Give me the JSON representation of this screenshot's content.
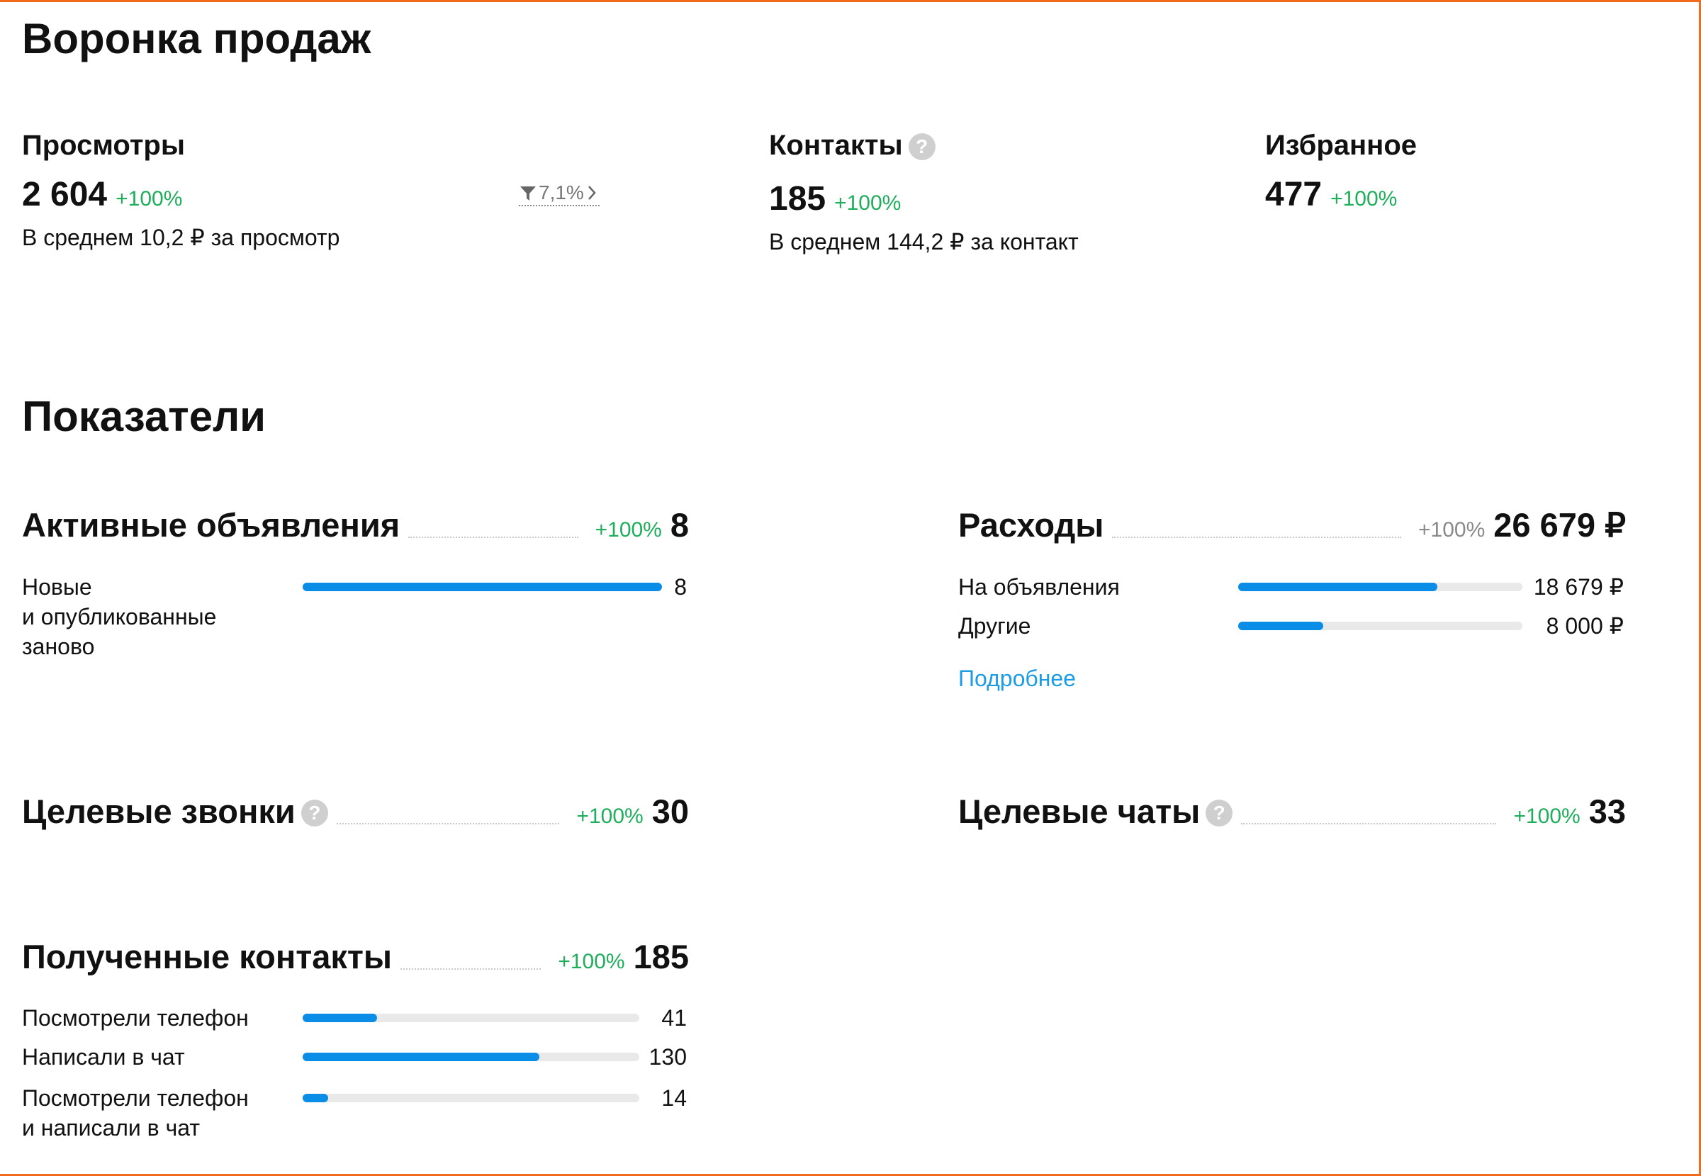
{
  "funnel": {
    "title": "Воронка продаж",
    "items": [
      {
        "label": "Просмотры",
        "value": "2 604",
        "change": "+100%",
        "note": "В среднем 10,2 ₽ за просмотр",
        "conversion": "7,1%"
      },
      {
        "label": "Контакты",
        "help": "?",
        "value": "185",
        "change": "+100%",
        "note": "В среднем 144,2 ₽ за контакт"
      },
      {
        "label": "Избранное",
        "value": "477",
        "change": "+100%"
      }
    ]
  },
  "metrics": {
    "title": "Показатели",
    "blocks": [
      {
        "title": "Активные объявления",
        "change": "+100%",
        "total": 8,
        "rows": [
          {
            "label": "Новые\nи опубликованные\nзаново",
            "value": 8
          }
        ]
      },
      {
        "title": "Расходы",
        "change": "+100%",
        "total": {
          "value": 26679,
          "label": "26 679 ₽"
        },
        "rows": [
          {
            "label": "На объявления",
            "value": {
              "value": 18679,
              "label": "18 679 ₽"
            }
          },
          {
            "label": "Другие",
            "value": {
              "value": 8000,
              "label": "8 000 ₽"
            }
          }
        ],
        "link": "Подробнее"
      },
      {
        "title": "Целевые звонки",
        "help": "?",
        "change": "+100%",
        "total": 30
      },
      {
        "title": "Целевые чаты",
        "help": "?",
        "change": "+100%",
        "total": 33
      },
      {
        "title": "Полученные контакты",
        "change": "+100%",
        "total": 185,
        "rows": [
          {
            "label": "Посмотрели телефон",
            "value": 41
          },
          {
            "label": "Написали в чат",
            "value": 130
          },
          {
            "label": "Посмотрели телефон\nи написали в чат",
            "value": 14
          }
        ]
      }
    ]
  }
}
